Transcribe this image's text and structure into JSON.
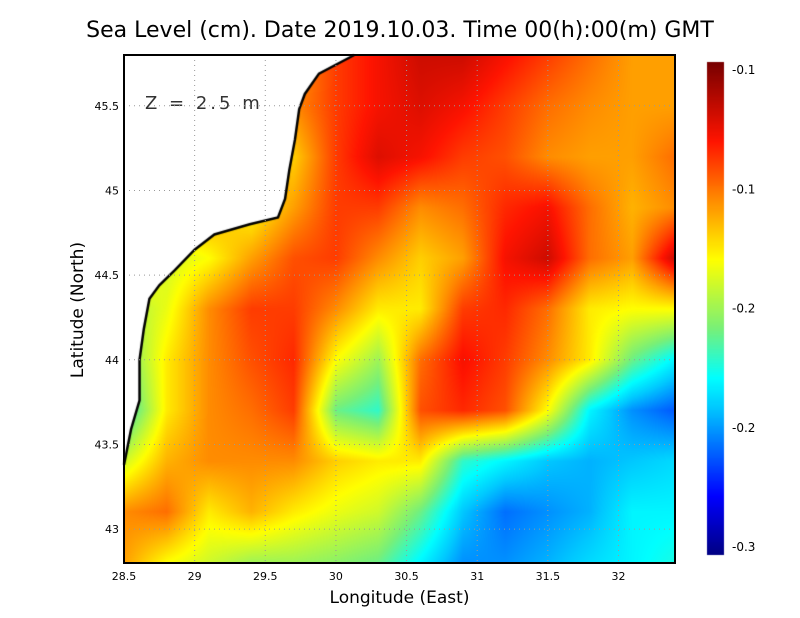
{
  "chart_data": {
    "type": "heatmap",
    "title": "Sea Level (cm). Date 2019.10.03. Time 00(h):00(m) GMT",
    "xlabel": "Longitude (East)",
    "ylabel": "Latitude (North)",
    "annotation": "Z = 2.5 m",
    "xlim": [
      28.5,
      32.4
    ],
    "ylim": [
      42.8,
      45.8
    ],
    "xticks": [
      "28.5",
      "29",
      "29.5",
      "30",
      "30.5",
      "31",
      "31.5",
      "32"
    ],
    "yticks": [
      "43",
      "43.5",
      "44",
      "44.5",
      "45",
      "45.5"
    ],
    "grid": true,
    "colorbar": {
      "vmin": -0.3,
      "vmax": -0.1,
      "labels": [
        "-0.1",
        "-0.1",
        "-0.2",
        "-0.2",
        "-0.3"
      ],
      "position": "right",
      "colormap": "jet"
    },
    "grid_lon": [
      28.5,
      28.8,
      29.1,
      29.4,
      29.7,
      30.0,
      30.3,
      30.6,
      30.9,
      31.2,
      31.5,
      31.8,
      32.1,
      32.4
    ],
    "grid_lat": [
      45.8,
      45.5,
      45.2,
      44.9,
      44.6,
      44.3,
      44.0,
      43.7,
      43.4,
      43.1,
      42.8
    ],
    "values": [
      [
        null,
        null,
        null,
        null,
        -0.16,
        -0.14,
        -0.13,
        -0.12,
        -0.12,
        -0.13,
        -0.14,
        -0.15,
        -0.16,
        -0.16
      ],
      [
        null,
        null,
        null,
        null,
        -0.156,
        -0.14,
        -0.13,
        -0.124,
        -0.13,
        -0.14,
        -0.15,
        -0.156,
        -0.16,
        -0.16
      ],
      [
        null,
        null,
        null,
        null,
        -0.17,
        -0.14,
        -0.124,
        -0.13,
        -0.14,
        -0.144,
        -0.156,
        -0.16,
        -0.16,
        -0.15
      ],
      [
        null,
        null,
        null,
        -0.18,
        -0.16,
        -0.14,
        -0.14,
        -0.156,
        -0.15,
        -0.136,
        -0.13,
        -0.15,
        -0.164,
        -0.156
      ],
      [
        null,
        -0.19,
        -0.18,
        -0.16,
        -0.144,
        -0.14,
        -0.156,
        -0.17,
        -0.16,
        -0.13,
        -0.12,
        -0.15,
        -0.16,
        -0.12
      ],
      [
        -0.2,
        -0.184,
        -0.156,
        -0.14,
        -0.14,
        -0.156,
        -0.176,
        -0.176,
        -0.14,
        -0.136,
        -0.15,
        -0.176,
        -0.18,
        -0.18
      ],
      [
        -0.21,
        -0.176,
        -0.156,
        -0.144,
        -0.136,
        -0.18,
        -0.2,
        -0.15,
        -0.13,
        -0.14,
        -0.156,
        -0.176,
        -0.21,
        -0.23
      ],
      [
        -0.224,
        -0.176,
        -0.156,
        -0.15,
        -0.14,
        -0.21,
        -0.22,
        -0.144,
        -0.136,
        -0.144,
        -0.18,
        -0.23,
        -0.25,
        -0.26
      ],
      [
        -0.19,
        -0.164,
        -0.156,
        -0.156,
        -0.156,
        -0.17,
        -0.176,
        -0.176,
        -0.22,
        -0.23,
        -0.24,
        -0.244,
        -0.24,
        -0.236
      ],
      [
        -0.156,
        -0.15,
        -0.176,
        -0.164,
        -0.176,
        -0.184,
        -0.19,
        -0.21,
        -0.24,
        -0.256,
        -0.25,
        -0.244,
        -0.23,
        -0.23
      ],
      [
        -0.16,
        -0.18,
        -0.19,
        -0.2,
        -0.2,
        -0.204,
        -0.21,
        -0.23,
        -0.25,
        -0.25,
        -0.244,
        -0.236,
        -0.23,
        -0.224
      ]
    ],
    "coastline": [
      [
        30.13,
        45.8
      ],
      [
        29.88,
        45.69
      ],
      [
        29.78,
        45.57
      ],
      [
        29.74,
        45.48
      ],
      [
        29.71,
        45.3
      ],
      [
        29.67,
        45.12
      ],
      [
        29.64,
        44.95
      ],
      [
        29.59,
        44.84
      ],
      [
        29.39,
        44.8
      ],
      [
        29.14,
        44.74
      ],
      [
        29.0,
        44.65
      ],
      [
        28.86,
        44.53
      ],
      [
        28.75,
        44.44
      ],
      [
        28.68,
        44.36
      ],
      [
        28.64,
        44.18
      ],
      [
        28.61,
        44.0
      ],
      [
        28.61,
        43.76
      ],
      [
        28.55,
        43.59
      ],
      [
        28.5,
        43.38
      ]
    ]
  }
}
